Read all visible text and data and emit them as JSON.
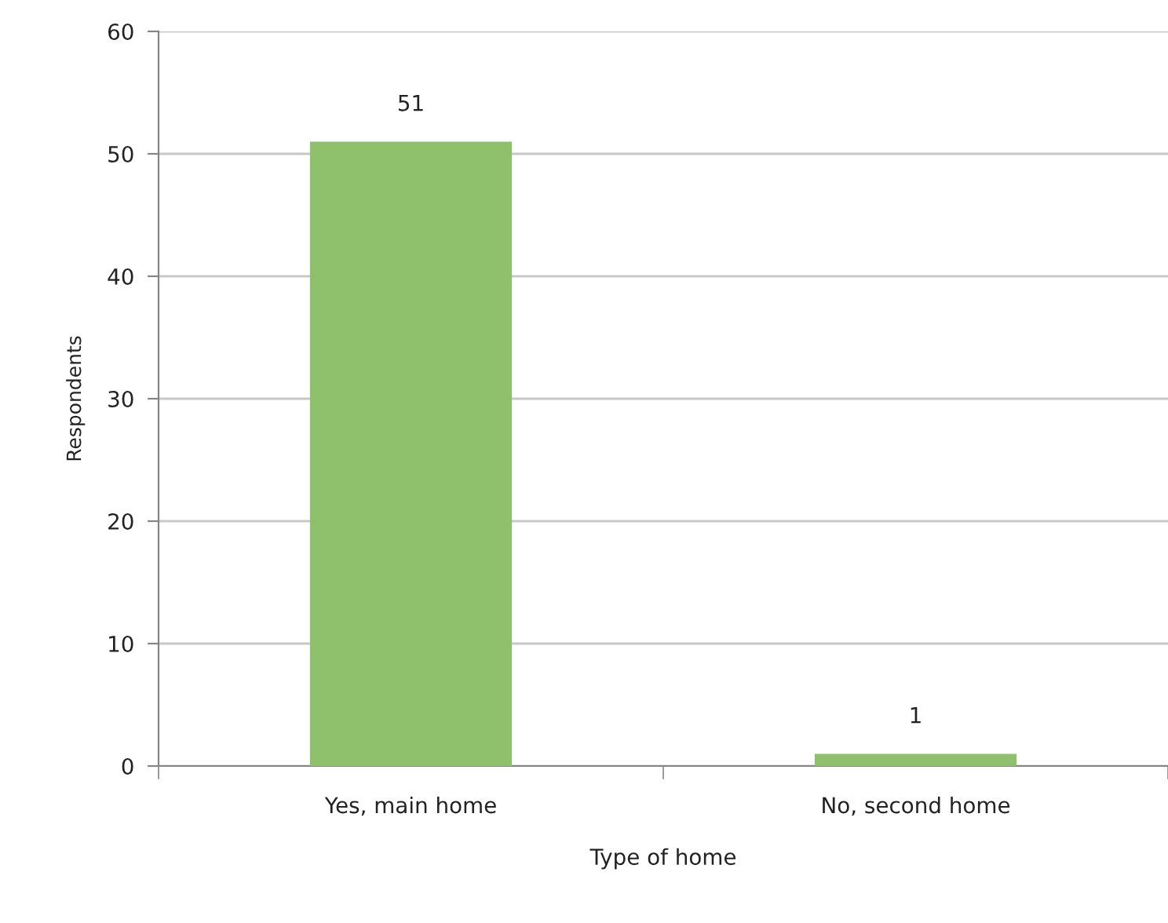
{
  "chart_data": {
    "type": "bar",
    "xlabel": "Type of home",
    "ylabel": "Respondents",
    "categories": [
      "Yes, main home",
      "No, second home"
    ],
    "values": [
      51,
      1
    ],
    "color": "#8fc16c",
    "ylim": [
      0,
      60
    ],
    "yticks": [
      0,
      10,
      20,
      30,
      40,
      50,
      60
    ],
    "grid": "y",
    "data_labels": true
  }
}
